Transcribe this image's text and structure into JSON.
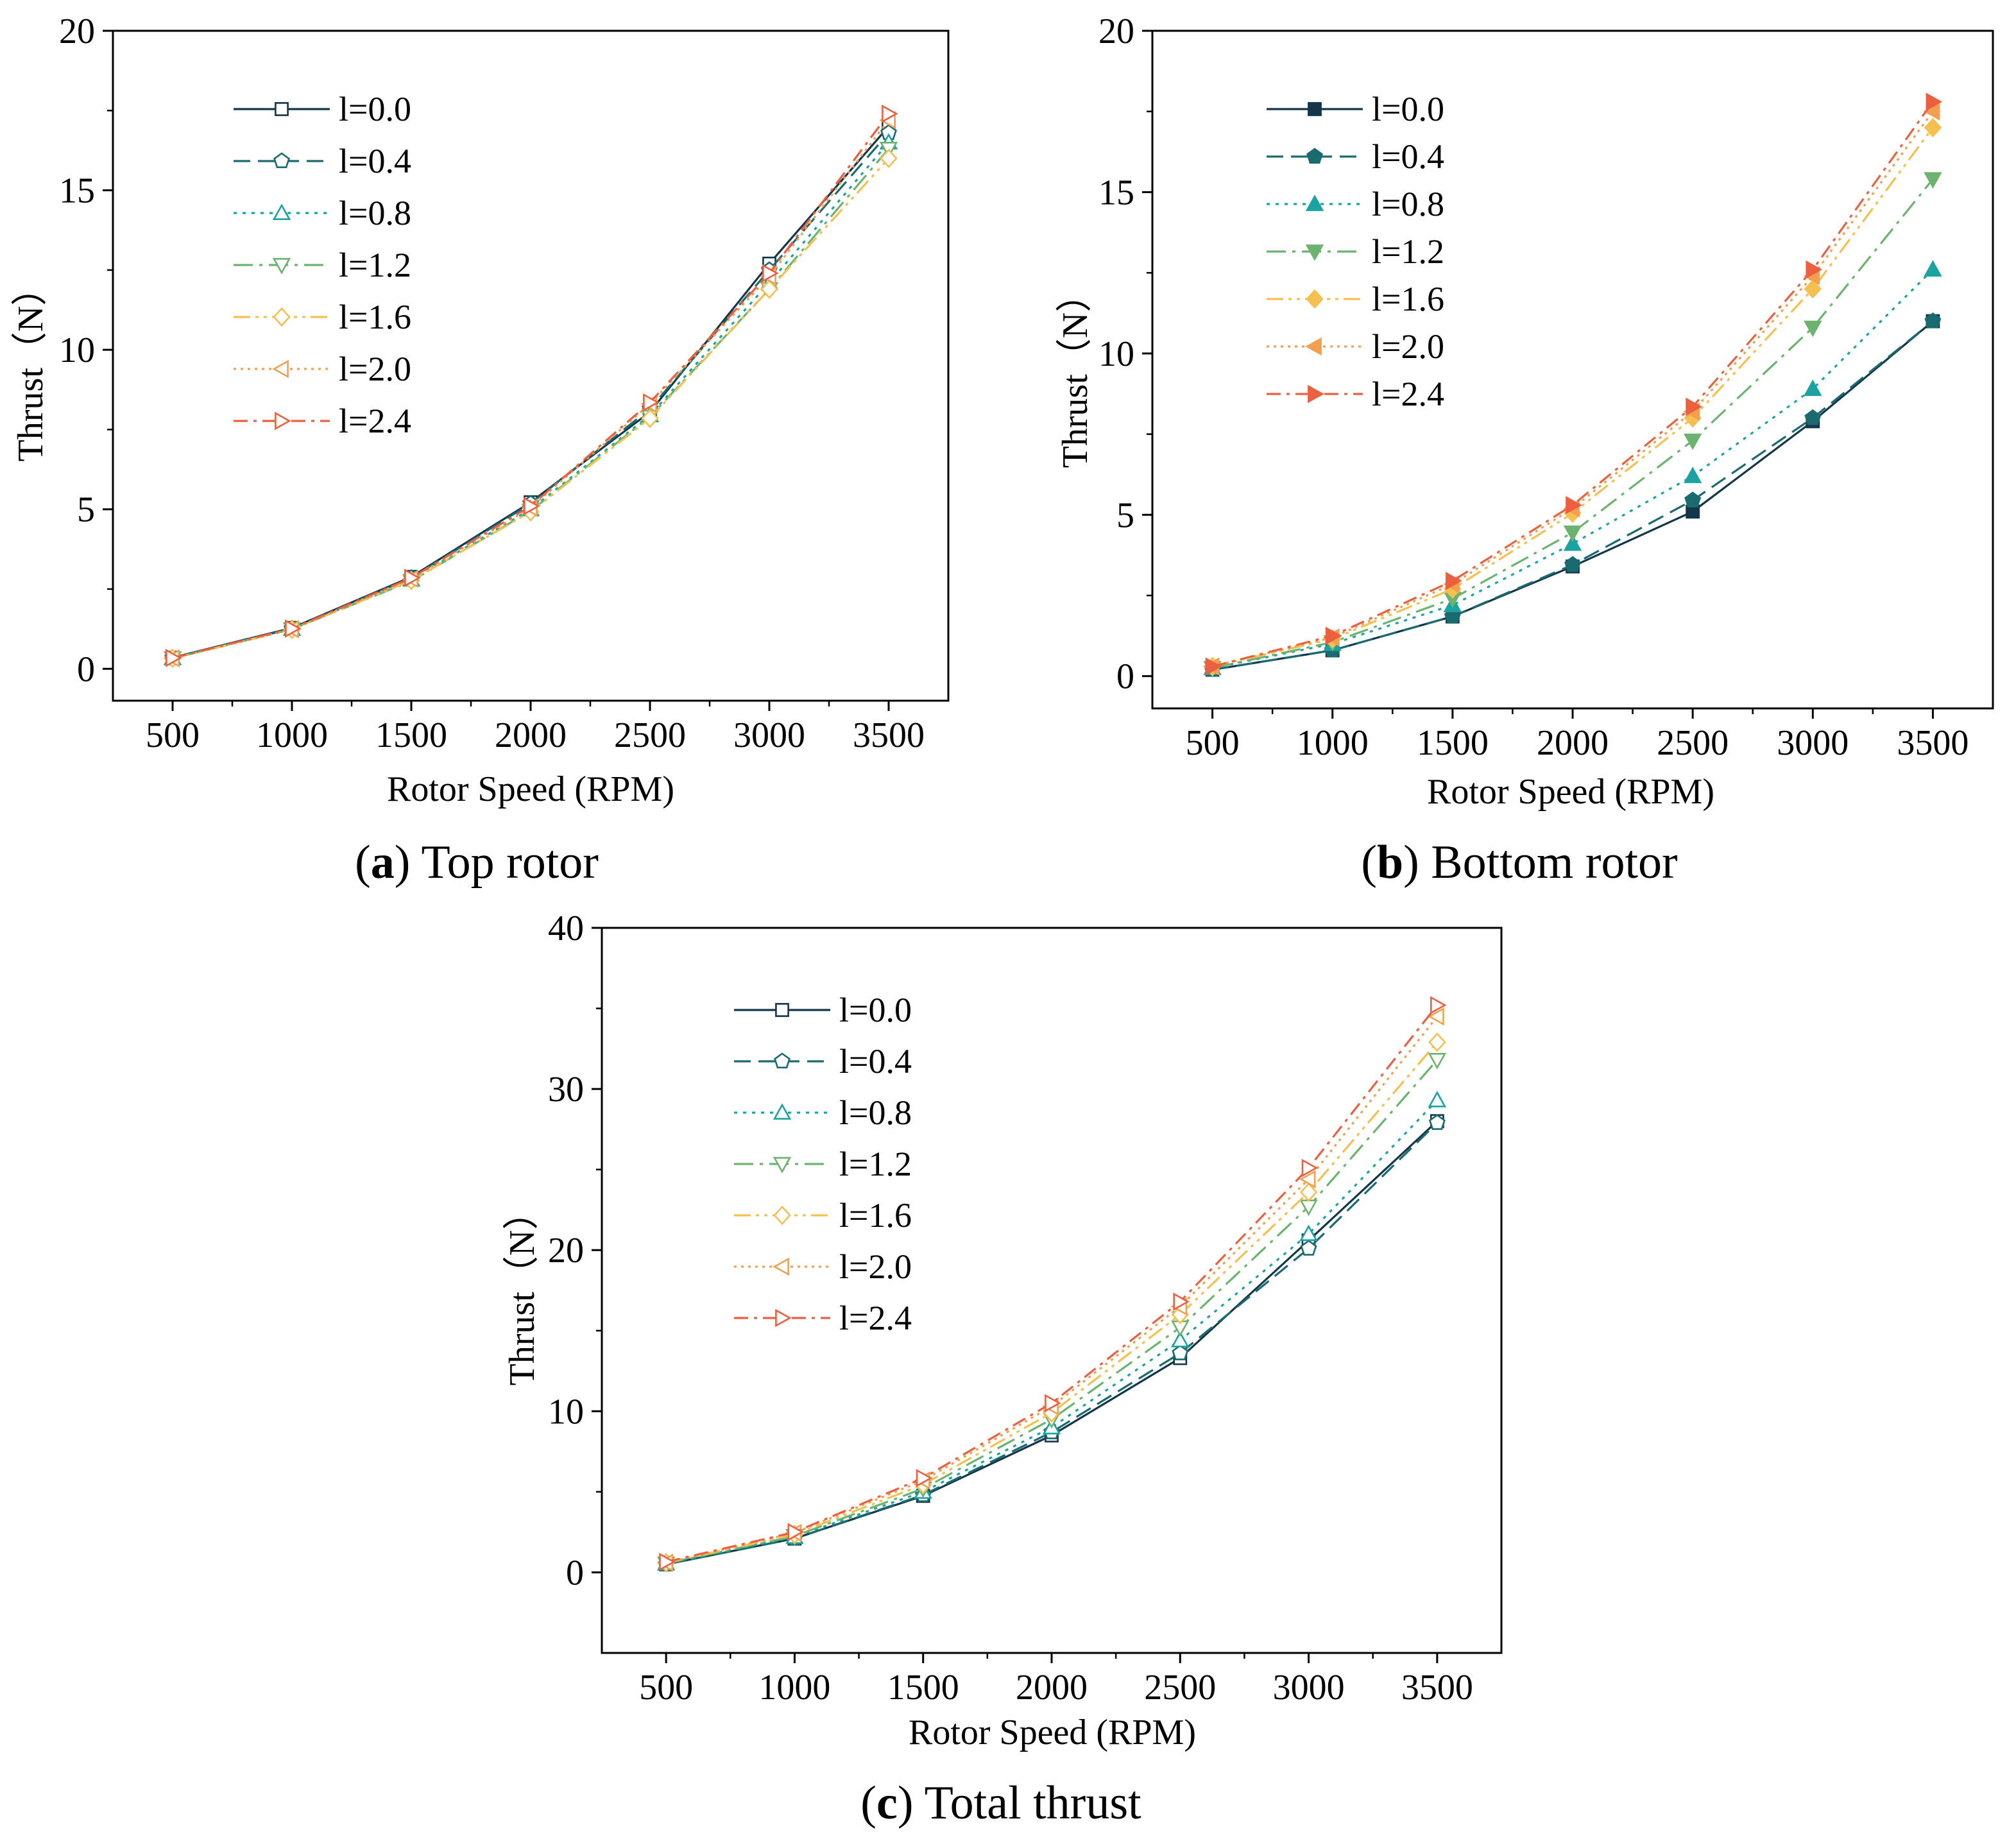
{
  "chart_data": [
    {
      "type": "line",
      "caption_letter": "a",
      "caption_text": "Top rotor",
      "xlabel": "Rotor Speed (RPM)",
      "ylabel": "Thrust（N）",
      "x": [
        500,
        1000,
        1500,
        2000,
        2500,
        3000,
        3500
      ],
      "xticks": [
        "500",
        "1000",
        "1500",
        "2000",
        "2500",
        "3000",
        "3500"
      ],
      "xlim": [
        250,
        3750
      ],
      "ylim": [
        -1,
        20
      ],
      "yticks": [
        "0",
        "5",
        "10",
        "15",
        "20"
      ],
      "marker_fill": "open",
      "series": [
        {
          "name": "l=0.0",
          "values": [
            0.35,
            1.28,
            2.88,
            5.22,
            8.05,
            12.7,
            17.0
          ]
        },
        {
          "name": "l=0.4",
          "values": [
            0.34,
            1.26,
            2.85,
            5.18,
            8.15,
            12.5,
            16.8
          ]
        },
        {
          "name": "l=0.8",
          "values": [
            0.33,
            1.25,
            2.8,
            5.0,
            7.95,
            12.1,
            16.5
          ]
        },
        {
          "name": "l=1.2",
          "values": [
            0.33,
            1.24,
            2.75,
            4.95,
            7.9,
            11.9,
            16.3
          ]
        },
        {
          "name": "l=1.6",
          "values": [
            0.33,
            1.23,
            2.77,
            4.92,
            7.85,
            11.9,
            16.0
          ]
        },
        {
          "name": "l=2.0",
          "values": [
            0.33,
            1.24,
            2.82,
            5.05,
            8.3,
            12.3,
            17.2
          ]
        },
        {
          "name": "l=2.4",
          "values": [
            0.34,
            1.26,
            2.85,
            5.1,
            8.35,
            12.4,
            17.4
          ]
        }
      ]
    },
    {
      "type": "line",
      "caption_letter": "b",
      "caption_text": "Bottom rotor",
      "xlabel": "Rotor Speed (RPM)",
      "ylabel": "Thrust（N）",
      "x": [
        500,
        1000,
        1500,
        2000,
        2500,
        3000,
        3500
      ],
      "xticks": [
        "500",
        "1000",
        "1500",
        "2000",
        "2500",
        "3000",
        "3500"
      ],
      "xlim": [
        250,
        3750
      ],
      "ylim": [
        -1,
        20
      ],
      "yticks": [
        "0",
        "5",
        "10",
        "15",
        "20"
      ],
      "marker_fill": "filled",
      "series": [
        {
          "name": "l=0.0",
          "values": [
            0.2,
            0.8,
            1.85,
            3.4,
            5.1,
            7.9,
            11.0
          ]
        },
        {
          "name": "l=0.4",
          "values": [
            0.2,
            0.8,
            1.85,
            3.45,
            5.45,
            8.0,
            11.0
          ]
        },
        {
          "name": "l=0.8",
          "values": [
            0.25,
            1.0,
            2.2,
            4.1,
            6.2,
            8.9,
            12.6
          ]
        },
        {
          "name": "l=1.2",
          "values": [
            0.25,
            1.05,
            2.4,
            4.45,
            7.3,
            10.8,
            15.4
          ]
        },
        {
          "name": "l=1.6",
          "values": [
            0.3,
            1.15,
            2.7,
            5.05,
            8.0,
            12.0,
            17.0
          ]
        },
        {
          "name": "l=2.0",
          "values": [
            0.3,
            1.2,
            2.85,
            5.2,
            8.2,
            12.4,
            17.5
          ]
        },
        {
          "name": "l=2.4",
          "values": [
            0.3,
            1.25,
            2.95,
            5.3,
            8.35,
            12.6,
            17.8
          ]
        }
      ]
    },
    {
      "type": "line",
      "caption_letter": "c",
      "caption_text": "Total thrust",
      "xlabel": "Rotor Speed (RPM)",
      "ylabel": "Thrust（N）",
      "x": [
        500,
        1000,
        1500,
        2000,
        2500,
        3000,
        3500
      ],
      "xticks": [
        "500",
        "1000",
        "1500",
        "2000",
        "2500",
        "3000",
        "3500"
      ],
      "xlim": [
        250,
        3750
      ],
      "ylim": [
        -5,
        40
      ],
      "yticks": [
        "0",
        "10",
        "20",
        "30",
        "40"
      ],
      "marker_fill": "open",
      "series": [
        {
          "name": "l=0.0",
          "values": [
            0.5,
            2.1,
            4.75,
            8.5,
            13.3,
            20.6,
            28.0
          ]
        },
        {
          "name": "l=0.4",
          "values": [
            0.5,
            2.1,
            4.8,
            8.7,
            13.6,
            20.1,
            27.9
          ]
        },
        {
          "name": "l=0.8",
          "values": [
            0.55,
            2.2,
            5.0,
            9.0,
            14.4,
            21.0,
            29.3
          ]
        },
        {
          "name": "l=1.2",
          "values": [
            0.55,
            2.25,
            5.2,
            9.5,
            15.2,
            22.7,
            31.8
          ]
        },
        {
          "name": "l=1.6",
          "values": [
            0.6,
            2.35,
            5.45,
            9.9,
            16.0,
            23.6,
            32.9
          ]
        },
        {
          "name": "l=2.0",
          "values": [
            0.6,
            2.45,
            5.7,
            10.3,
            16.5,
            24.4,
            34.5
          ]
        },
        {
          "name": "l=2.4",
          "values": [
            0.65,
            2.5,
            5.85,
            10.5,
            16.8,
            25.1,
            35.2
          ]
        }
      ]
    }
  ],
  "series_styles": [
    {
      "color": "#14364a",
      "dash": "none",
      "marker": "square"
    },
    {
      "color": "#1a6b70",
      "dash": "dash",
      "marker": "pentagon"
    },
    {
      "color": "#1aa3a0",
      "dash": "dot",
      "marker": "triangle-up"
    },
    {
      "color": "#6bb36f",
      "dash": "dashdot",
      "marker": "triangle-down"
    },
    {
      "color": "#f5c050",
      "dash": "dashdotdot",
      "marker": "diamond"
    },
    {
      "color": "#f2a050",
      "dash": "shortdot",
      "marker": "triangle-left"
    },
    {
      "color": "#ec5f3f",
      "dash": "dashdot2",
      "marker": "triangle-right"
    }
  ]
}
